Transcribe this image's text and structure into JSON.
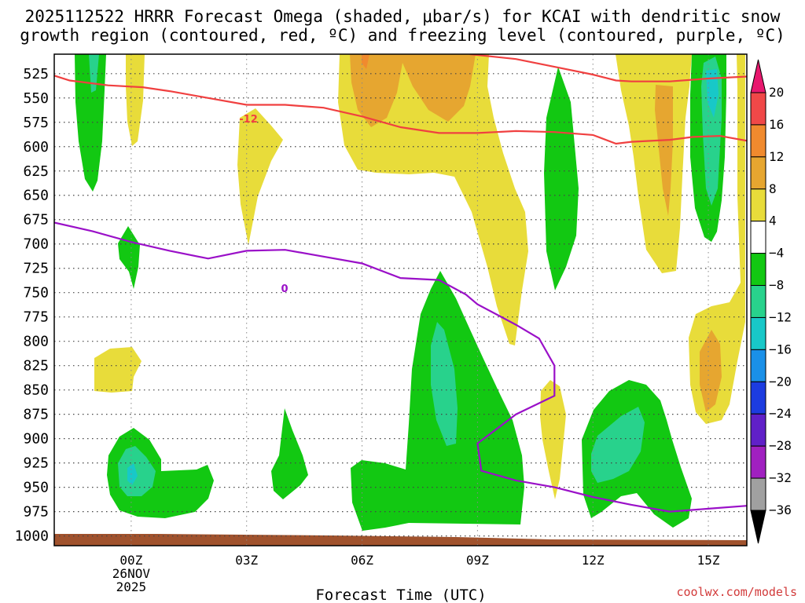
{
  "chart_data": {
    "type": "time-height contour",
    "title_line1": "2025112522 HRRR Forecast Omega (shaded, μbar/s) for KCAI with dendritic snow",
    "title_line2": "growth region (contoured, red, ºC) and freezing level (contoured, purple, ºC)",
    "xlabel": "Forecast Time (UTC)",
    "credit": "coolwx.com/models",
    "x_ticks": [
      {
        "hour": 0,
        "label": "00Z",
        "sub1": "26NOV",
        "sub2": "2025"
      },
      {
        "hour": 3,
        "label": "03Z",
        "sub1": "",
        "sub2": ""
      },
      {
        "hour": 6,
        "label": "06Z",
        "sub1": "",
        "sub2": ""
      },
      {
        "hour": 9,
        "label": "09Z",
        "sub1": "",
        "sub2": ""
      },
      {
        "hour": 12,
        "label": "12Z",
        "sub1": "",
        "sub2": ""
      },
      {
        "hour": 15,
        "label": "15Z",
        "sub1": "",
        "sub2": ""
      }
    ],
    "x_range_hours": [
      -2,
      16
    ],
    "y_label_levels": [
      "525",
      "550",
      "575",
      "600",
      "625",
      "650",
      "675",
      "700",
      "725",
      "750",
      "775",
      "800",
      "825",
      "850",
      "875",
      "900",
      "925",
      "950",
      "975",
      "1000"
    ],
    "y_range_hPa": [
      505,
      1010
    ],
    "colorbar": {
      "labels": [
        "20",
        "16",
        "12",
        "8",
        "4",
        "−4",
        "−8",
        "−12",
        "−16",
        "−20",
        "−24",
        "−28",
        "−32",
        "−36"
      ],
      "bins": [
        {
          "range": "above 20",
          "color": "#e8186e"
        },
        {
          "range": "16 to 20",
          "color": "#f04848"
        },
        {
          "range": "12 to 16",
          "color": "#f08a2e"
        },
        {
          "range": "8 to 12",
          "color": "#e6a630"
        },
        {
          "range": "4 to 8",
          "color": "#e8dc3a"
        },
        {
          "range": "-4 to 4",
          "color": "#ffffff"
        },
        {
          "range": "-8 to -4",
          "color": "#12c812"
        },
        {
          "range": "-12 to -8",
          "color": "#28d28c"
        },
        {
          "range": "-16 to -12",
          "color": "#18c8c8"
        },
        {
          "range": "-20 to -16",
          "color": "#1a90e8"
        },
        {
          "range": "-24 to -20",
          "color": "#1c3ce0"
        },
        {
          "range": "-28 to -24",
          "color": "#6020c8"
        },
        {
          "range": "-32 to -28",
          "color": "#a020c0"
        },
        {
          "range": "-36 to -32",
          "color": "#a0a0a0"
        },
        {
          "range": "below -36",
          "color": "#000000"
        }
      ]
    },
    "dgz_minus12C_contour": {
      "label": "-12",
      "color": "#f04040",
      "points": [
        [
          -2,
          527
        ],
        [
          -1.6,
          532
        ],
        [
          -0.6,
          537
        ],
        [
          0.3,
          539
        ],
        [
          1,
          543
        ],
        [
          2,
          550
        ],
        [
          3,
          557
        ],
        [
          4,
          557
        ],
        [
          5,
          560
        ],
        [
          6,
          569
        ],
        [
          7,
          580
        ],
        [
          8,
          586
        ],
        [
          9,
          586
        ],
        [
          10,
          584
        ],
        [
          11,
          585
        ],
        [
          12,
          588
        ],
        [
          12.6,
          597
        ],
        [
          13,
          595
        ],
        [
          14,
          593
        ],
        [
          14.6,
          590
        ],
        [
          15.3,
          589
        ],
        [
          16,
          594
        ]
      ],
      "points_upper": [
        [
          8.8,
          505
        ],
        [
          10,
          510
        ],
        [
          11,
          518
        ],
        [
          12,
          526
        ],
        [
          12.6,
          532
        ],
        [
          13,
          533
        ],
        [
          14,
          533
        ],
        [
          15,
          530
        ],
        [
          16,
          528
        ]
      ]
    },
    "freezing_level_0C_contour": {
      "label": "0",
      "color": "#9a10c8",
      "points": [
        [
          -2,
          678
        ],
        [
          -1,
          687
        ],
        [
          0,
          698
        ],
        [
          1,
          707
        ],
        [
          2,
          715
        ],
        [
          3,
          707
        ],
        [
          4,
          706
        ],
        [
          5,
          713
        ],
        [
          6,
          720
        ],
        [
          7,
          735
        ],
        [
          8,
          737
        ],
        [
          8.7,
          752
        ],
        [
          9,
          762
        ],
        [
          10,
          783
        ],
        [
          10.6,
          797
        ],
        [
          11,
          825
        ],
        [
          11,
          856
        ],
        [
          10,
          875
        ],
        [
          9,
          905
        ],
        [
          9.1,
          933
        ],
        [
          10,
          943
        ],
        [
          11,
          950
        ],
        [
          12,
          960
        ],
        [
          13,
          968
        ],
        [
          14,
          975
        ],
        [
          15,
          972
        ],
        [
          16,
          969
        ]
      ]
    }
  }
}
